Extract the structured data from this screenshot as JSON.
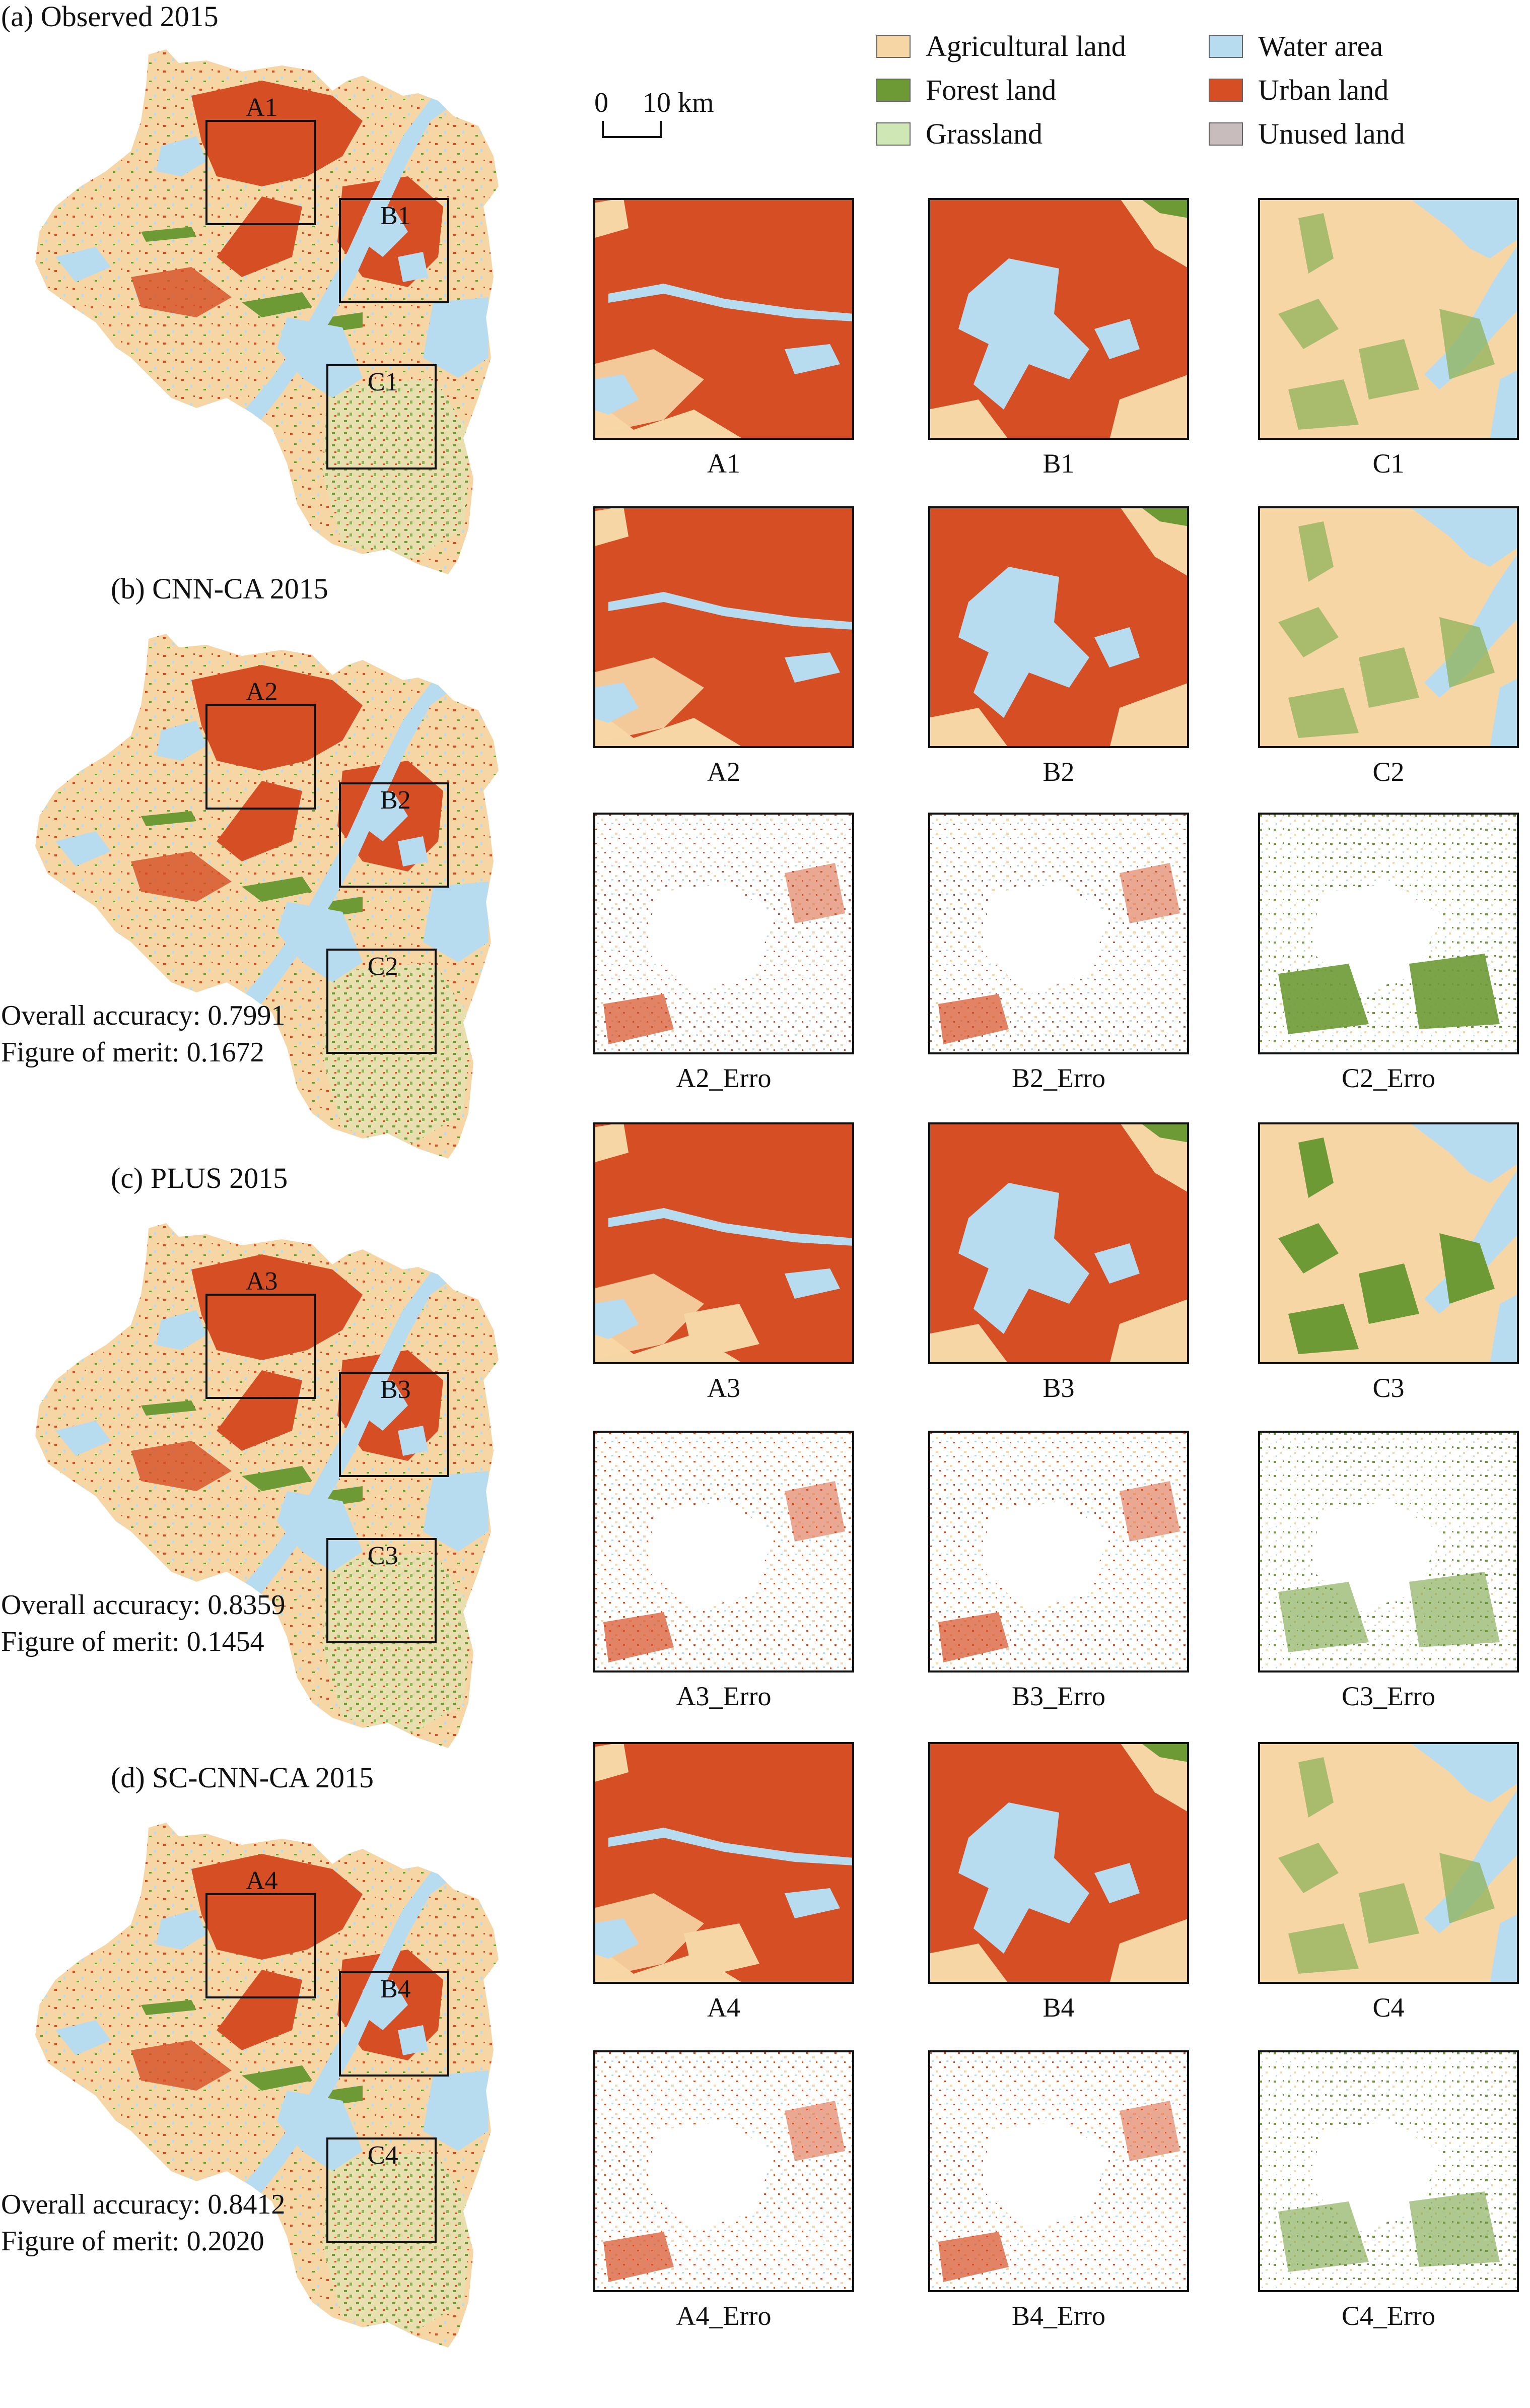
{
  "colors": {
    "agricultural": "#f7d6a6",
    "forest": "#6d9a35",
    "grassland": "#cfe7b5",
    "water": "#b7dcef",
    "urban": "#d64f24",
    "unused": "#c8bcbc"
  },
  "legend": [
    {
      "key": "agricultural",
      "label": "Agricultural land"
    },
    {
      "key": "forest",
      "label": "Forest land"
    },
    {
      "key": "grassland",
      "label": "Grassland"
    },
    {
      "key": "water",
      "label": "Water area"
    },
    {
      "key": "urban",
      "label": "Urban land"
    },
    {
      "key": "unused",
      "label": "Unused land"
    }
  ],
  "scale_bar": {
    "zero": "0",
    "distance": "10 km"
  },
  "panels": [
    {
      "title": "(a) Observed 2015",
      "regions": [
        "A1",
        "B1",
        "C1"
      ],
      "accuracy": "",
      "merit": ""
    },
    {
      "title": "(b) CNN-CA 2015",
      "regions": [
        "A2",
        "B2",
        "C2"
      ],
      "accuracy": "Overall accuracy: 0.7991",
      "merit": "Figure of merit: 0.1672"
    },
    {
      "title": "(c) PLUS 2015",
      "regions": [
        "A3",
        "B3",
        "C3"
      ],
      "accuracy": "Overall accuracy: 0.8359",
      "merit": "Figure of merit: 0.1454"
    },
    {
      "title": "(d) SC-CNN-CA 2015",
      "regions": [
        "A4",
        "B4",
        "C4"
      ],
      "accuracy": "Overall accuracy: 0.8412",
      "merit": "Figure of merit: 0.2020"
    }
  ],
  "zoom_rows": [
    [
      "A1",
      "B1",
      "C1"
    ],
    [
      "A2",
      "B2",
      "C2"
    ],
    [
      "A2_Erro",
      "B2_Erro",
      "C2_Erro"
    ],
    [
      "A3",
      "B3",
      "C3"
    ],
    [
      "A3_Erro",
      "B3_Erro",
      "C3_Erro"
    ],
    [
      "A4",
      "B4",
      "C4"
    ],
    [
      "A4_Erro",
      "B4_Erro",
      "C4_Erro"
    ]
  ]
}
